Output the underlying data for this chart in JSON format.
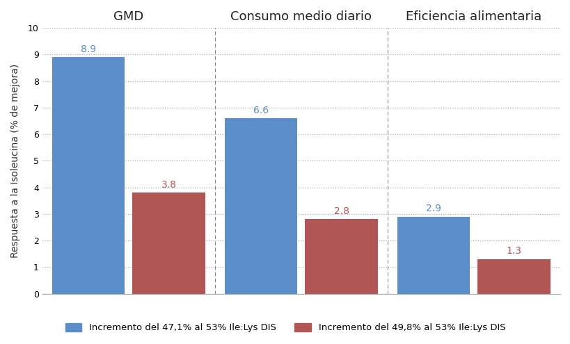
{
  "groups": [
    "GMD",
    "Consumo medio diario",
    "Eficiencia alimentaria"
  ],
  "blue_values": [
    8.9,
    6.6,
    2.9
  ],
  "red_values": [
    3.8,
    2.8,
    1.3
  ],
  "blue_color": "#5B8DC8",
  "red_color": "#B25555",
  "ylabel": "Respuesta a la Isoleucina (% de mejora)",
  "ylim": [
    0,
    10
  ],
  "yticks": [
    0,
    1,
    2,
    3,
    4,
    5,
    6,
    7,
    8,
    9,
    10
  ],
  "legend_blue": "Incremento del 47,1% al 53% Ile:Lys DIS",
  "legend_red": "Incremento del 49,8% al 53% Ile:Lys DIS",
  "bg_color": "#FFFFFF",
  "grid_color": "#AAAAAA",
  "bar_width": 0.38,
  "bar_gap": 0.04,
  "label_fontsize": 10,
  "tick_fontsize": 9,
  "title_fontsize": 13
}
